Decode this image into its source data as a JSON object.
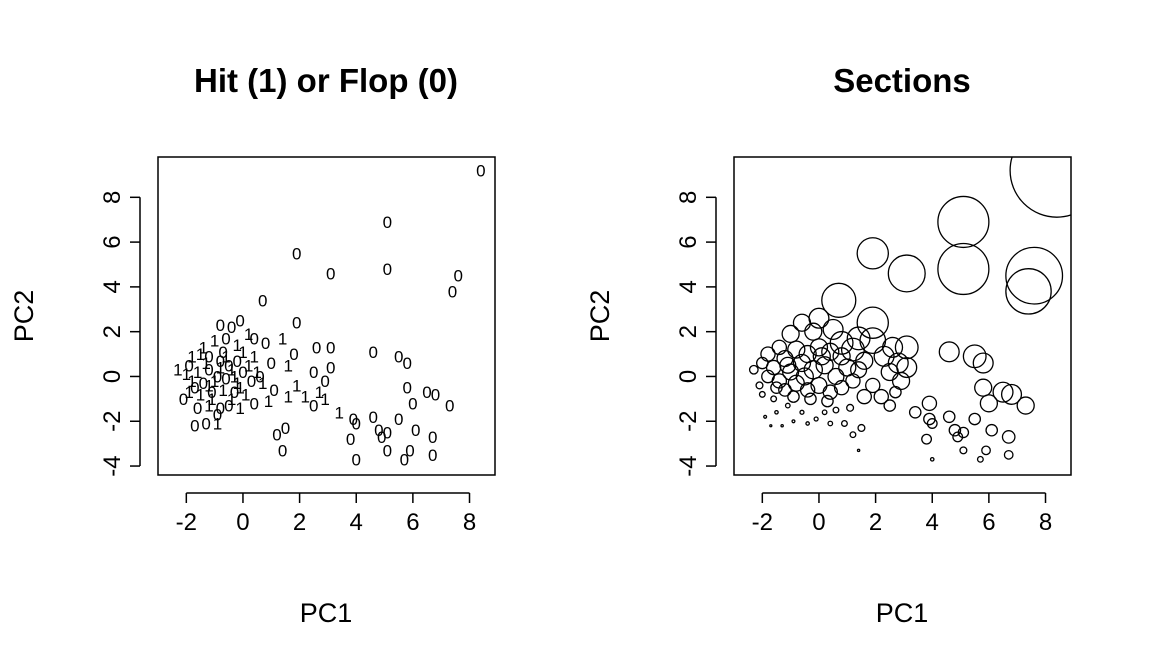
{
  "chart_data": [
    {
      "type": "scatter",
      "title": "Hit (1) or Flop (0)",
      "xlabel": "PC1",
      "ylabel": "PC2",
      "xlim": [
        -3,
        8.9
      ],
      "ylim": [
        -4.4,
        9.8
      ],
      "xticks": [
        -2,
        0,
        2,
        4,
        6,
        8
      ],
      "yticks": [
        -4,
        -2,
        0,
        2,
        4,
        6,
        8
      ],
      "tick_labels_x": [
        "-2",
        "0",
        "2",
        "4",
        "6",
        "8"
      ],
      "tick_labels_y": [
        "-4",
        "-2",
        "0",
        "2",
        "4",
        "6",
        "8"
      ],
      "marker": "text-label",
      "points": [
        [
          8.4,
          9.2,
          "0"
        ],
        [
          5.1,
          6.9,
          "0"
        ],
        [
          1.9,
          5.5,
          "0"
        ],
        [
          3.1,
          4.6,
          "0"
        ],
        [
          5.1,
          4.8,
          "0"
        ],
        [
          7.6,
          4.5,
          "0"
        ],
        [
          7.4,
          3.8,
          "0"
        ],
        [
          0.7,
          3.4,
          "0"
        ],
        [
          4.6,
          1.1,
          "0"
        ],
        [
          5.5,
          0.9,
          "0"
        ],
        [
          5.8,
          0.6,
          "0"
        ],
        [
          3.1,
          1.3,
          "0"
        ],
        [
          2.6,
          1.3,
          "0"
        ],
        [
          3.1,
          0.4,
          "0"
        ],
        [
          2.5,
          0.2,
          "0"
        ],
        [
          2.9,
          -0.2,
          "0"
        ],
        [
          5.8,
          -0.5,
          "0"
        ],
        [
          6.5,
          -0.7,
          "0"
        ],
        [
          6.8,
          -0.8,
          "0"
        ],
        [
          6.0,
          -1.2,
          "0"
        ],
        [
          7.3,
          -1.3,
          "0"
        ],
        [
          4.6,
          -1.8,
          "0"
        ],
        [
          3.9,
          -1.9,
          "0"
        ],
        [
          3.4,
          -1.6,
          "1"
        ],
        [
          4.0,
          -2.1,
          "0"
        ],
        [
          4.8,
          -2.4,
          "0"
        ],
        [
          5.1,
          -2.5,
          "0"
        ],
        [
          5.5,
          -1.9,
          "0"
        ],
        [
          6.1,
          -2.4,
          "0"
        ],
        [
          6.7,
          -2.7,
          "0"
        ],
        [
          3.8,
          -2.8,
          "0"
        ],
        [
          4.9,
          -2.7,
          "0"
        ],
        [
          5.1,
          -3.3,
          "0"
        ],
        [
          5.9,
          -3.3,
          "0"
        ],
        [
          6.7,
          -3.5,
          "0"
        ],
        [
          5.7,
          -3.7,
          "0"
        ],
        [
          4.0,
          -3.7,
          "0"
        ],
        [
          1.4,
          -3.3,
          "0"
        ],
        [
          1.5,
          -2.3,
          "0"
        ],
        [
          1.2,
          -2.6,
          "0"
        ],
        [
          2.7,
          -0.7,
          "1"
        ],
        [
          2.5,
          -1.3,
          "0"
        ],
        [
          2.9,
          -1.0,
          "1"
        ],
        [
          2.2,
          -0.9,
          "1"
        ],
        [
          1.9,
          -0.4,
          "1"
        ],
        [
          1.6,
          -0.9,
          "1"
        ],
        [
          1.8,
          1.0,
          "0"
        ],
        [
          1.6,
          0.5,
          "1"
        ],
        [
          1.9,
          2.4,
          "0"
        ],
        [
          1.4,
          1.7,
          "1"
        ],
        [
          0.8,
          1.5,
          "0"
        ],
        [
          0.4,
          0.9,
          "1"
        ],
        [
          1.0,
          0.6,
          "0"
        ],
        [
          0.5,
          0.2,
          "1"
        ],
        [
          0.7,
          -0.3,
          "1"
        ],
        [
          1.1,
          -0.6,
          "0"
        ],
        [
          0.4,
          -1.2,
          "0"
        ],
        [
          0.9,
          -1.1,
          "1"
        ],
        [
          -0.1,
          -1.4,
          "1"
        ],
        [
          -0.5,
          -1.3,
          "0"
        ],
        [
          -0.8,
          -1.4,
          "0"
        ],
        [
          -1.2,
          -1.3,
          "1"
        ],
        [
          -1.6,
          -1.4,
          "0"
        ],
        [
          -2.1,
          -1.0,
          "0"
        ],
        [
          -1.7,
          -2.2,
          "0"
        ],
        [
          -1.3,
          -2.1,
          "0"
        ],
        [
          -0.9,
          -2.1,
          "1"
        ],
        [
          -0.9,
          -1.7,
          "0"
        ],
        [
          -1.9,
          -0.7,
          "1"
        ],
        [
          -2.3,
          0.3,
          "1"
        ],
        [
          -1.8,
          0.9,
          "1"
        ],
        [
          -1.4,
          1.3,
          "1"
        ],
        [
          -1.0,
          1.6,
          "1"
        ],
        [
          -0.6,
          1.7,
          "0"
        ],
        [
          -0.2,
          1.4,
          "1"
        ],
        [
          0.2,
          1.9,
          "1"
        ],
        [
          -0.1,
          2.5,
          "0"
        ],
        [
          -0.4,
          2.2,
          "0"
        ],
        [
          -0.8,
          2.3,
          "0"
        ],
        [
          0.4,
          1.7,
          "0"
        ],
        [
          -1.2,
          0.9,
          "0"
        ],
        [
          -0.6,
          0.9,
          "1"
        ],
        [
          -0.2,
          0.7,
          "0"
        ],
        [
          0.2,
          0.5,
          "1"
        ],
        [
          -1.6,
          0.2,
          "1"
        ],
        [
          -1.2,
          0.3,
          "0"
        ],
        [
          -0.8,
          0.4,
          "1"
        ],
        [
          -0.4,
          0.3,
          "1"
        ],
        [
          0.0,
          0.2,
          "0"
        ],
        [
          -1.8,
          -0.2,
          "1"
        ],
        [
          -1.4,
          -0.3,
          "0"
        ],
        [
          -1.0,
          -0.2,
          "1"
        ],
        [
          -0.6,
          -0.1,
          "0"
        ],
        [
          -0.2,
          -0.3,
          "1"
        ],
        [
          0.3,
          -0.2,
          "0"
        ],
        [
          -1.5,
          -0.8,
          "1"
        ],
        [
          -1.1,
          -0.7,
          "0"
        ],
        [
          -0.7,
          -0.6,
          "1"
        ],
        [
          -0.3,
          -0.7,
          "0"
        ],
        [
          0.1,
          -0.8,
          "1"
        ],
        [
          -2.0,
          0.1,
          "1"
        ],
        [
          -1.3,
          0.6,
          "1"
        ],
        [
          -0.9,
          0.0,
          "0"
        ],
        [
          -0.5,
          0.5,
          "0"
        ],
        [
          -0.1,
          -0.5,
          "1"
        ],
        [
          -1.9,
          0.5,
          "0"
        ],
        [
          -1.5,
          1.0,
          "1"
        ],
        [
          -1.1,
          -1.0,
          "1"
        ],
        [
          -0.7,
          1.1,
          "0"
        ],
        [
          -0.3,
          0.0,
          "1"
        ],
        [
          0.6,
          0.0,
          "0"
        ],
        [
          0.0,
          1.1,
          "1"
        ],
        [
          -1.7,
          -0.5,
          "0"
        ],
        [
          -0.4,
          -1.0,
          "1"
        ],
        [
          -0.8,
          0.7,
          "0"
        ],
        [
          -1.2,
          -0.4,
          "1"
        ]
      ]
    },
    {
      "type": "scatter",
      "title": "Sections",
      "xlabel": "PC1",
      "ylabel": "PC2",
      "xlim": [
        -3,
        8.9
      ],
      "ylim": [
        -4.4,
        9.8
      ],
      "xticks": [
        -2,
        0,
        2,
        4,
        6,
        8
      ],
      "yticks": [
        -4,
        -2,
        0,
        2,
        4,
        6,
        8
      ],
      "tick_labels_x": [
        "-2",
        "0",
        "2",
        "4",
        "6",
        "8"
      ],
      "tick_labels_y": [
        "-4",
        "-2",
        "0",
        "2",
        "4",
        "6",
        "8"
      ],
      "marker": "open-circle",
      "point_size": "circle radius",
      "points": [
        [
          8.4,
          9.2,
          1.65
        ],
        [
          5.1,
          6.9,
          0.9
        ],
        [
          5.1,
          4.8,
          0.9
        ],
        [
          7.6,
          4.5,
          1.0
        ],
        [
          7.4,
          3.8,
          0.8
        ],
        [
          3.1,
          4.6,
          0.65
        ],
        [
          1.9,
          5.5,
          0.55
        ],
        [
          0.7,
          3.4,
          0.6
        ],
        [
          1.9,
          2.4,
          0.55
        ],
        [
          1.9,
          1.6,
          0.45
        ],
        [
          1.4,
          1.7,
          0.4
        ],
        [
          1.2,
          1.2,
          0.4
        ],
        [
          0.8,
          1.5,
          0.4
        ],
        [
          0.5,
          2.1,
          0.35
        ],
        [
          0.0,
          2.6,
          0.35
        ],
        [
          -0.6,
          2.4,
          0.3
        ],
        [
          -1.0,
          1.9,
          0.3
        ],
        [
          -0.2,
          2.0,
          0.3
        ],
        [
          3.1,
          1.3,
          0.4
        ],
        [
          2.6,
          1.3,
          0.35
        ],
        [
          2.3,
          0.9,
          0.35
        ],
        [
          2.8,
          0.6,
          0.35
        ],
        [
          3.1,
          0.4,
          0.35
        ],
        [
          2.5,
          0.2,
          0.3
        ],
        [
          2.9,
          -0.2,
          0.3
        ],
        [
          4.6,
          1.1,
          0.35
        ],
        [
          5.5,
          0.9,
          0.4
        ],
        [
          5.8,
          0.6,
          0.35
        ],
        [
          5.8,
          -0.5,
          0.3
        ],
        [
          6.5,
          -0.7,
          0.35
        ],
        [
          6.8,
          -0.8,
          0.35
        ],
        [
          6.0,
          -1.2,
          0.3
        ],
        [
          7.3,
          -1.3,
          0.3
        ],
        [
          2.2,
          -0.9,
          0.25
        ],
        [
          1.6,
          -0.9,
          0.25
        ],
        [
          2.5,
          -1.3,
          0.2
        ],
        [
          2.7,
          -0.7,
          0.2
        ],
        [
          1.9,
          -0.4,
          0.25
        ],
        [
          3.9,
          -1.2,
          0.25
        ],
        [
          3.4,
          -1.6,
          0.2
        ],
        [
          3.9,
          -1.9,
          0.2
        ],
        [
          4.0,
          -2.1,
          0.17
        ],
        [
          4.6,
          -1.8,
          0.2
        ],
        [
          4.8,
          -2.4,
          0.2
        ],
        [
          5.1,
          -2.5,
          0.18
        ],
        [
          5.5,
          -1.9,
          0.2
        ],
        [
          6.1,
          -2.4,
          0.2
        ],
        [
          6.7,
          -2.7,
          0.22
        ],
        [
          3.8,
          -2.8,
          0.17
        ],
        [
          4.9,
          -2.7,
          0.17
        ],
        [
          5.1,
          -3.3,
          0.12
        ],
        [
          5.9,
          -3.3,
          0.15
        ],
        [
          6.7,
          -3.5,
          0.15
        ],
        [
          5.7,
          -3.7,
          0.1
        ],
        [
          4.0,
          -3.7,
          0.06
        ],
        [
          1.4,
          -3.3,
          0.04
        ],
        [
          1.5,
          -2.3,
          0.12
        ],
        [
          1.2,
          -2.6,
          0.1
        ],
        [
          0.9,
          -2.1,
          0.1
        ],
        [
          0.4,
          -2.1,
          0.08
        ],
        [
          -0.1,
          -1.9,
          0.07
        ],
        [
          -0.4,
          -2.1,
          0.06
        ],
        [
          -0.9,
          -2.0,
          0.05
        ],
        [
          -1.3,
          -2.2,
          0.04
        ],
        [
          -1.7,
          -2.2,
          0.03
        ],
        [
          -1.9,
          -1.8,
          0.05
        ],
        [
          -1.5,
          -1.6,
          0.06
        ],
        [
          -0.6,
          -1.6,
          0.07
        ],
        [
          0.2,
          -1.6,
          0.08
        ],
        [
          0.6,
          -1.5,
          0.1
        ],
        [
          1.1,
          -1.4,
          0.12
        ],
        [
          -1.1,
          -1.3,
          0.08
        ],
        [
          -1.6,
          -1.0,
          0.1
        ],
        [
          -2.0,
          -0.8,
          0.1
        ],
        [
          -2.1,
          -0.4,
          0.12
        ],
        [
          -2.3,
          0.3,
          0.15
        ],
        [
          -2.0,
          0.6,
          0.2
        ],
        [
          -1.8,
          1.0,
          0.25
        ],
        [
          -1.4,
          1.3,
          0.25
        ],
        [
          -1.6,
          0.4,
          0.25
        ],
        [
          -1.2,
          0.8,
          0.28
        ],
        [
          -0.8,
          1.2,
          0.3
        ],
        [
          -0.4,
          1.0,
          0.3
        ],
        [
          0.0,
          1.3,
          0.3
        ],
        [
          0.4,
          1.1,
          0.3
        ],
        [
          0.8,
          0.9,
          0.3
        ],
        [
          1.0,
          0.4,
          0.3
        ],
        [
          0.6,
          0.0,
          0.28
        ],
        [
          0.2,
          0.5,
          0.3
        ],
        [
          -0.2,
          0.3,
          0.32
        ],
        [
          -0.6,
          0.6,
          0.3
        ],
        [
          -1.0,
          0.2,
          0.28
        ],
        [
          -1.4,
          -0.2,
          0.25
        ],
        [
          -1.8,
          0.0,
          0.22
        ],
        [
          -1.2,
          -0.6,
          0.22
        ],
        [
          -0.8,
          -0.3,
          0.28
        ],
        [
          -0.4,
          -0.6,
          0.25
        ],
        [
          0.0,
          -0.4,
          0.28
        ],
        [
          0.4,
          -0.7,
          0.25
        ],
        [
          0.8,
          -0.5,
          0.25
        ],
        [
          1.2,
          -0.2,
          0.25
        ],
        [
          1.4,
          0.3,
          0.28
        ],
        [
          1.6,
          0.7,
          0.3
        ],
        [
          -0.9,
          -0.9,
          0.2
        ],
        [
          -0.3,
          -1.0,
          0.2
        ],
        [
          0.3,
          -1.1,
          0.2
        ],
        [
          -1.5,
          -0.5,
          0.2
        ],
        [
          0.1,
          0.9,
          0.3
        ],
        [
          -0.5,
          0.0,
          0.3
        ],
        [
          -1.1,
          0.5,
          0.28
        ]
      ]
    }
  ]
}
